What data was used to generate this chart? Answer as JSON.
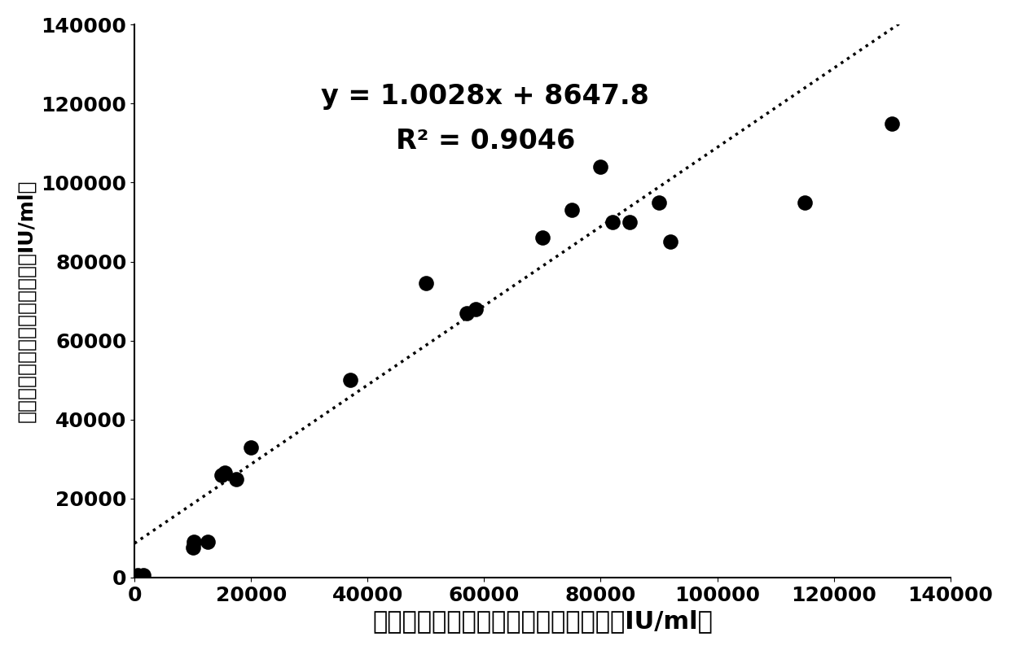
{
  "x_data": [
    500,
    1500,
    10000,
    10200,
    12500,
    15000,
    15500,
    17500,
    20000,
    37000,
    50000,
    57000,
    58500,
    70000,
    75000,
    80000,
    82000,
    85000,
    90000,
    92000,
    115000,
    130000
  ],
  "y_data": [
    500,
    500,
    7500,
    9000,
    9000,
    26000,
    26500,
    25000,
    33000,
    50000,
    74500,
    67000,
    68000,
    86000,
    93000,
    104000,
    90000,
    90000,
    95000,
    85000,
    95000,
    115000
  ],
  "equation": "y = 1.0028x + 8647.8",
  "r_squared": "R² = 0.9046",
  "slope": 1.0028,
  "intercept": 8647.8,
  "x_line_start": 0,
  "x_line_end": 140000,
  "xlim": [
    0,
    140000
  ],
  "ylim": [
    0,
    140000
  ],
  "xticks": [
    0,
    20000,
    40000,
    60000,
    80000,
    100000,
    120000,
    140000
  ],
  "yticks": [
    0,
    20000,
    40000,
    60000,
    80000,
    100000,
    120000,
    140000
  ],
  "xlabel": "本发明建立干扰素活性检测方法结果（IU/ml）",
  "ylabel": "微量细胞病变抑制法检测结果（IU/ml）",
  "dot_color": "#000000",
  "dot_size": 180,
  "line_color": "#000000",
  "line_style": "dotted",
  "line_width": 2.5,
  "annotation_fontsize": 24,
  "xlabel_fontsize": 22,
  "ylabel_fontsize": 18,
  "tick_fontsize": 18,
  "background_color": "#ffffff",
  "fig_width": 12.4,
  "fig_height": 7.99
}
